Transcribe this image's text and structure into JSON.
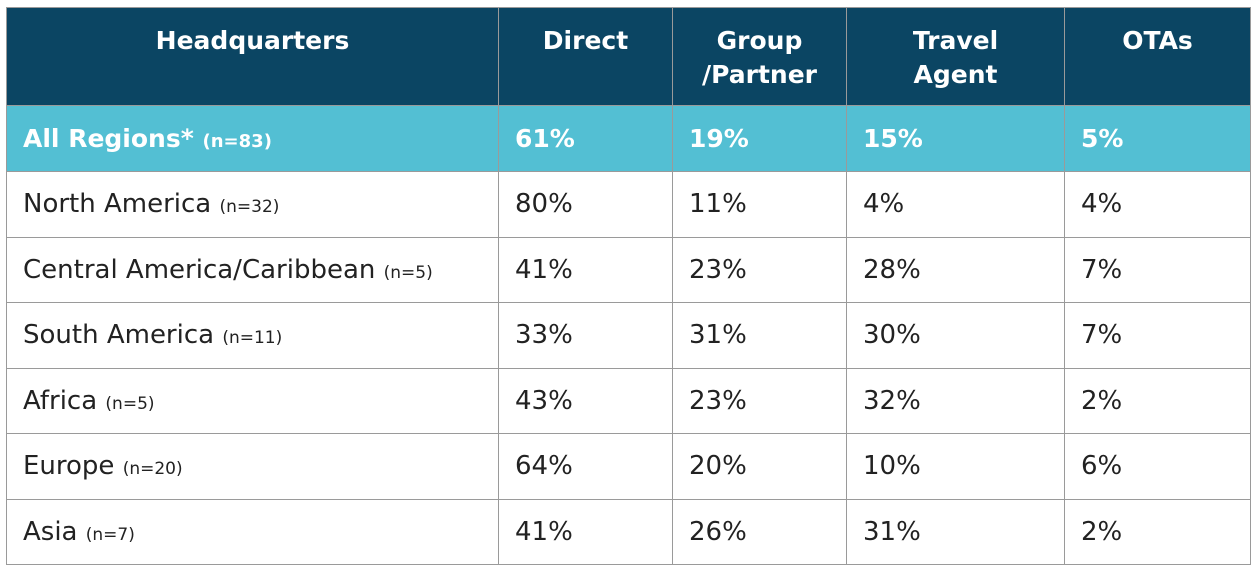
{
  "columns": [
    {
      "lines": [
        "Headquarters"
      ]
    },
    {
      "lines": [
        "Direct"
      ]
    },
    {
      "lines": [
        "Group",
        "/Partner"
      ]
    },
    {
      "lines": [
        "Travel",
        "Agent"
      ]
    },
    {
      "lines": [
        "OTAs"
      ]
    }
  ],
  "all_regions": {
    "label": "All Regions*",
    "n": "(n=83)",
    "values": [
      "61%",
      "19%",
      "15%",
      "5%"
    ]
  },
  "rows": [
    {
      "label": "North America",
      "n": "(n=32)",
      "values": [
        "80%",
        "11%",
        "4%",
        "4%"
      ]
    },
    {
      "label": "Central America/Caribbean",
      "n": "(n=5)",
      "values": [
        "41%",
        "23%",
        "28%",
        "7%"
      ]
    },
    {
      "label": "South America",
      "n": "(n=11)",
      "values": [
        "33%",
        "31%",
        "30%",
        "7%"
      ]
    },
    {
      "label": "Africa",
      "n": "(n=5)",
      "values": [
        "43%",
        "23%",
        "32%",
        "2%"
      ]
    },
    {
      "label": "Europe",
      "n": "(n=20)",
      "values": [
        "64%",
        "20%",
        "10%",
        "6%"
      ]
    },
    {
      "label": "Asia",
      "n": "(n=7)",
      "values": [
        "41%",
        "26%",
        "31%",
        "2%"
      ]
    }
  ],
  "colors": {
    "header_bg": "#0b4563",
    "highlight_bg": "#53bfd3",
    "border": "#9a9a9a",
    "text": "#222222"
  }
}
